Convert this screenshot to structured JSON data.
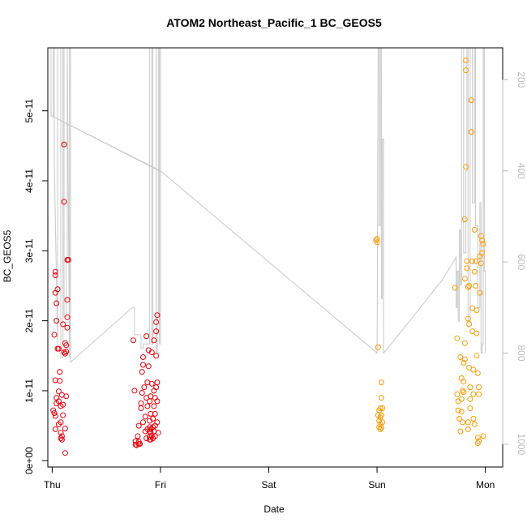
{
  "chart_data": {
    "type": "scatter",
    "title": "ATOM2 Northeast_Pacific_1 BC_GEOS5",
    "xlabel": "Date",
    "ylabel": "BC_GEOS5",
    "x_unit": "days",
    "x_ticks": [
      {
        "label": "Thu",
        "value": 0
      },
      {
        "label": "Fri",
        "value": 1
      },
      {
        "label": "Sat",
        "value": 2
      },
      {
        "label": "Sun",
        "value": 3
      },
      {
        "label": "Mon",
        "value": 4
      }
    ],
    "y_ticks": [
      {
        "label": "0e+00",
        "value": 0
      },
      {
        "label": "1e-11",
        "value": 1e-11
      },
      {
        "label": "2e-11",
        "value": 2e-11
      },
      {
        "label": "3e-11",
        "value": 3e-11
      },
      {
        "label": "4e-11",
        "value": 4e-11
      },
      {
        "label": "5e-11",
        "value": 5e-11
      }
    ],
    "y2_ticks": [
      {
        "label": "200",
        "value": 200
      },
      {
        "label": "400",
        "value": 400
      },
      {
        "label": "600",
        "value": 600
      },
      {
        "label": "800",
        "value": 800
      },
      {
        "label": "1000",
        "value": 1000
      }
    ],
    "xlim": [
      -0.04,
      4.16
    ],
    "ylim": [
      -9e-13,
      5.9e-11
    ],
    "y2lim": [
      1050,
      130
    ],
    "y2_reversed": true,
    "grid": false,
    "series": [
      {
        "color": "#e8000b",
        "marker": "open-circle",
        "points": [
          [
            0.02,
            6.8e-12
          ],
          [
            0.01,
            7.2e-12
          ],
          [
            0.03,
            6.4e-12
          ],
          [
            0.02,
            1.8e-11
          ],
          [
            0.03,
            4.5e-12
          ],
          [
            0.04,
            8.2e-12
          ],
          [
            0.04,
            9e-12
          ],
          [
            0.03,
            2.65e-11
          ],
          [
            0.03,
            2.7e-11
          ],
          [
            0.03,
            2.4e-11
          ],
          [
            0.04,
            2.25e-11
          ],
          [
            0.03,
            1.15e-11
          ],
          [
            0.04,
            2e-11
          ],
          [
            0.05,
            1.6e-11
          ],
          [
            0.05,
            2.45e-11
          ],
          [
            0.06,
            1.6e-11
          ],
          [
            0.06,
            5.2e-12
          ],
          [
            0.06,
            8.5e-12
          ],
          [
            0.06,
            9.9e-12
          ],
          [
            0.07,
            1.27e-11
          ],
          [
            0.07,
            1.14e-11
          ],
          [
            0.08,
            5.5e-12
          ],
          [
            0.08,
            4e-12
          ],
          [
            0.08,
            3.2e-12
          ],
          [
            0.09,
            3e-12
          ],
          [
            0.09,
            3.5e-12
          ],
          [
            0.09,
            9.4e-12
          ],
          [
            0.08,
            7.8e-12
          ],
          [
            0.1,
            6.5e-12
          ],
          [
            0.1,
            8e-12
          ],
          [
            0.1,
            1.95e-11
          ],
          [
            0.11,
            1.55e-11
          ],
          [
            0.11,
            3.7e-11
          ],
          [
            0.11,
            4.52e-11
          ],
          [
            0.12,
            1.68e-11
          ],
          [
            0.12,
            1.53e-11
          ],
          [
            0.13,
            1.65e-11
          ],
          [
            0.12,
            1.1e-12
          ],
          [
            0.12,
            4.6e-12
          ],
          [
            0.13,
            9.2e-12
          ],
          [
            0.14,
            2.05e-11
          ],
          [
            0.14,
            2.3e-11
          ],
          [
            0.14,
            1.9e-11
          ],
          [
            0.13,
            1.56e-11
          ],
          [
            0.14,
            2.87e-11
          ],
          [
            0.15,
            2.87e-11
          ],
          [
            0.75,
            1.72e-11
          ],
          [
            0.76,
            1e-11
          ],
          [
            0.77,
            2.8e-12
          ],
          [
            0.77,
            2.3e-12
          ],
          [
            0.78,
            2.2e-12
          ],
          [
            0.79,
            3.5e-12
          ],
          [
            0.8,
            5e-12
          ],
          [
            0.8,
            2.7e-12
          ],
          [
            0.8,
            2.4e-12
          ],
          [
            0.81,
            2.4e-12
          ],
          [
            0.82,
            7.5e-12
          ],
          [
            0.82,
            8.2e-12
          ],
          [
            0.83,
            9.7e-12
          ],
          [
            0.83,
            1.27e-11
          ],
          [
            0.84,
            5.5e-12
          ],
          [
            0.84,
            1.37e-11
          ],
          [
            0.84,
            1.48e-11
          ],
          [
            0.85,
            1.05e-11
          ],
          [
            0.86,
            4.2e-12
          ],
          [
            0.86,
            6.3e-12
          ],
          [
            0.87,
            9e-12
          ],
          [
            0.87,
            1.78e-11
          ],
          [
            0.87,
            3.2e-12
          ],
          [
            0.88,
            4.5e-12
          ],
          [
            0.88,
            7.8e-12
          ],
          [
            0.88,
            1.12e-11
          ],
          [
            0.89,
            1.58e-11
          ],
          [
            0.89,
            1.35e-11
          ],
          [
            0.9,
            3e-12
          ],
          [
            0.9,
            3.4e-12
          ],
          [
            0.9,
            4.2e-12
          ],
          [
            0.9,
            4.8e-12
          ],
          [
            0.9,
            5.7e-12
          ],
          [
            0.9,
            8.5e-12
          ],
          [
            0.91,
            3e-12
          ],
          [
            0.91,
            4e-12
          ],
          [
            0.91,
            4.5e-12
          ],
          [
            0.91,
            6.7e-12
          ],
          [
            0.91,
            9.2e-12
          ],
          [
            0.92,
            1.1e-11
          ],
          [
            0.92,
            1.55e-11
          ],
          [
            0.92,
            3.6e-12
          ],
          [
            0.93,
            3.2e-12
          ],
          [
            0.93,
            4.8e-12
          ],
          [
            0.93,
            6e-12
          ],
          [
            0.94,
            4.2e-12
          ],
          [
            0.94,
            7.8e-12
          ],
          [
            0.94,
            1e-11
          ],
          [
            0.94,
            1.72e-11
          ],
          [
            0.95,
            3.5e-12
          ],
          [
            0.95,
            5e-12
          ],
          [
            0.95,
            6.7e-12
          ],
          [
            0.95,
            9e-12
          ],
          [
            0.96,
            1.05e-11
          ],
          [
            0.96,
            1.5e-11
          ],
          [
            0.96,
            1.85e-11
          ],
          [
            0.96,
            1.98e-11
          ],
          [
            0.97,
            2.08e-11
          ],
          [
            0.97,
            1.12e-11
          ],
          [
            0.97,
            8.5e-12
          ],
          [
            0.97,
            5.5e-12
          ],
          [
            0.98,
            4e-12
          ]
        ]
      },
      {
        "color": "#ff9900",
        "marker": "open-circle",
        "points": [
          [
            2.99,
            3.15e-11
          ],
          [
            3.0,
            3.12e-11
          ],
          [
            3.0,
            3.17e-11
          ],
          [
            3.01,
            1.62e-11
          ],
          [
            3.01,
            6.5e-12
          ],
          [
            3.02,
            7.2e-12
          ],
          [
            3.02,
            5.7e-12
          ],
          [
            3.02,
            4.8e-12
          ],
          [
            3.03,
            4.5e-12
          ],
          [
            3.03,
            7.5e-12
          ],
          [
            3.03,
            6.2e-12
          ],
          [
            3.03,
            5.2e-12
          ],
          [
            3.04,
            4.7e-12
          ],
          [
            3.04,
            6.5e-12
          ],
          [
            3.04,
            9e-12
          ],
          [
            3.04,
            1.12e-11
          ],
          [
            3.05,
            7.5e-12
          ],
          [
            3.05,
            5.5e-12
          ],
          [
            3.72,
            2.47e-11
          ],
          [
            3.74,
            1.75e-11
          ],
          [
            3.74,
            9.5e-12
          ],
          [
            3.75,
            8.5e-12
          ],
          [
            3.75,
            7.2e-12
          ],
          [
            3.76,
            6e-12
          ],
          [
            3.77,
            4.2e-12
          ],
          [
            3.77,
            1.48e-11
          ],
          [
            3.78,
            1.18e-11
          ],
          [
            3.78,
            8.8e-12
          ],
          [
            3.78,
            7e-12
          ],
          [
            3.79,
            5.5e-12
          ],
          [
            3.79,
            1e-11
          ],
          [
            3.8,
            9.8e-12
          ],
          [
            3.8,
            1.13e-11
          ],
          [
            3.8,
            1.4e-11
          ],
          [
            3.81,
            1.68e-11
          ],
          [
            3.81,
            1.45e-11
          ],
          [
            3.81,
            2.6e-11
          ],
          [
            3.81,
            3.45e-11
          ],
          [
            3.82,
            5.72e-11
          ],
          [
            3.82,
            5.58e-11
          ],
          [
            3.82,
            4.2e-11
          ],
          [
            3.83,
            2.85e-11
          ],
          [
            3.83,
            2.75e-11
          ],
          [
            3.84,
            2.48e-11
          ],
          [
            3.84,
            2.03e-11
          ],
          [
            3.84,
            5.5e-12
          ],
          [
            3.84,
            4.5e-12
          ],
          [
            3.85,
            2.5e-11
          ],
          [
            3.85,
            1.95e-11
          ],
          [
            3.85,
            1.33e-11
          ],
          [
            3.86,
            7.5e-12
          ],
          [
            3.86,
            8.8e-12
          ],
          [
            3.86,
            1.05e-11
          ],
          [
            3.87,
            5.15e-11
          ],
          [
            3.87,
            4.7e-11
          ],
          [
            3.88,
            2.85e-11
          ],
          [
            3.88,
            2.18e-11
          ],
          [
            3.88,
            1.85e-11
          ],
          [
            3.89,
            1.3e-11
          ],
          [
            3.89,
            9.5e-12
          ],
          [
            3.89,
            6e-12
          ],
          [
            3.9,
            5.2e-12
          ],
          [
            3.9,
            3.3e-11
          ],
          [
            3.9,
            2.7e-11
          ],
          [
            3.91,
            2.5e-11
          ],
          [
            3.91,
            2.85e-11
          ],
          [
            3.92,
            2.15e-11
          ],
          [
            3.92,
            1.82e-11
          ],
          [
            3.92,
            1.5e-11
          ],
          [
            3.93,
            1.25e-11
          ],
          [
            3.93,
            3.3e-12
          ],
          [
            3.94,
            2.8e-12
          ],
          [
            3.94,
            9.5e-12
          ],
          [
            3.94,
            1.05e-11
          ],
          [
            3.95,
            2.4e-11
          ],
          [
            3.95,
            2.92e-11
          ],
          [
            3.96,
            3.21e-11
          ],
          [
            3.96,
            2.82e-11
          ],
          [
            3.97,
            2.97e-11
          ],
          [
            3.97,
            3.15e-11
          ],
          [
            3.98,
            3.1e-11
          ],
          [
            3.98,
            3.5e-12
          ],
          [
            3.93,
            2.5e-12
          ]
        ]
      }
    ],
    "pressure_line": {
      "color": "#c8c8c8",
      "axis": "right",
      "points": [
        [
          -0.01,
          130
        ],
        [
          -0.01,
          280
        ],
        [
          0.01,
          280
        ],
        [
          0.01,
          130
        ],
        [
          0.02,
          130
        ],
        [
          0.02,
          380
        ],
        [
          0.05,
          780
        ],
        [
          0.05,
          130
        ],
        [
          0.08,
          130
        ],
        [
          0.08,
          810
        ],
        [
          0.1,
          810
        ],
        [
          0.1,
          130
        ],
        [
          0.11,
          130
        ],
        [
          0.11,
          720
        ],
        [
          0.13,
          720
        ],
        [
          0.13,
          600
        ],
        [
          0.14,
          600
        ],
        [
          0.14,
          130
        ],
        [
          0.14,
          130
        ],
        [
          0.16,
          810
        ],
        [
          0.16,
          130
        ],
        [
          0.17,
          130
        ],
        [
          0.17,
          820
        ],
        [
          0.74,
          700
        ],
        [
          0.76,
          700
        ],
        [
          0.76,
          760
        ],
        [
          0.82,
          760
        ],
        [
          0.82,
          790
        ],
        [
          0.84,
          790
        ],
        [
          0.84,
          780
        ],
        [
          0.9,
          780
        ],
        [
          0.9,
          130
        ],
        [
          0.92,
          130
        ],
        [
          0.92,
          780
        ],
        [
          0.93,
          780
        ],
        [
          0.93,
          130
        ],
        [
          0.96,
          130
        ],
        [
          0.96,
          800
        ],
        [
          0.97,
          800
        ],
        [
          0.97,
          720
        ],
        [
          0.98,
          720
        ],
        [
          0.98,
          130
        ],
        [
          0.99,
          130
        ],
        [
          0.99,
          460
        ],
        [
          0.99,
          780
        ],
        [
          1.0,
          780
        ],
        [
          1.0,
          130
        ],
        [
          1.0,
          400
        ],
        [
          0.0,
          280
        ],
        [
          0.99,
          400
        ],
        [
          1.0,
          400
        ],
        [
          1.5,
          500
        ],
        [
          2.0,
          600
        ],
        [
          2.5,
          700
        ],
        [
          3.0,
          800
        ],
        [
          3.0,
          800
        ],
        [
          3.01,
          130
        ],
        [
          3.02,
          130
        ],
        [
          3.02,
          520
        ],
        [
          3.03,
          520
        ],
        [
          3.03,
          130
        ],
        [
          3.04,
          130
        ],
        [
          3.04,
          680
        ],
        [
          3.05,
          680
        ],
        [
          3.05,
          330
        ],
        [
          3.06,
          330
        ],
        [
          3.06,
          800
        ],
        [
          3.06,
          800
        ],
        [
          3.3,
          730
        ],
        [
          3.6,
          640
        ],
        [
          3.73,
          590
        ],
        [
          3.73,
          700
        ],
        [
          3.74,
          700
        ],
        [
          3.74,
          620
        ],
        [
          3.75,
          620
        ],
        [
          3.75,
          730
        ],
        [
          3.76,
          730
        ],
        [
          3.76,
          530
        ],
        [
          3.77,
          530
        ],
        [
          3.77,
          650
        ],
        [
          3.78,
          650
        ],
        [
          3.78,
          130
        ],
        [
          3.8,
          130
        ],
        [
          3.8,
          580
        ],
        [
          3.82,
          580
        ],
        [
          3.82,
          400
        ],
        [
          3.83,
          400
        ],
        [
          3.83,
          130
        ],
        [
          3.84,
          130
        ],
        [
          3.84,
          730
        ],
        [
          3.86,
          730
        ],
        [
          3.86,
          130
        ],
        [
          3.88,
          130
        ],
        [
          3.88,
          470
        ],
        [
          3.9,
          470
        ],
        [
          3.9,
          130
        ],
        [
          3.91,
          130
        ],
        [
          3.91,
          520
        ],
        [
          3.93,
          520
        ],
        [
          3.93,
          700
        ],
        [
          3.95,
          700
        ],
        [
          3.95,
          470
        ],
        [
          3.96,
          470
        ],
        [
          3.96,
          800
        ],
        [
          3.97,
          800
        ],
        [
          3.97,
          780
        ],
        [
          3.98,
          780
        ],
        [
          3.98,
          130
        ],
        [
          3.99,
          130
        ],
        [
          3.99,
          620
        ],
        [
          4.0,
          620
        ],
        [
          4.0,
          800
        ]
      ]
    }
  }
}
